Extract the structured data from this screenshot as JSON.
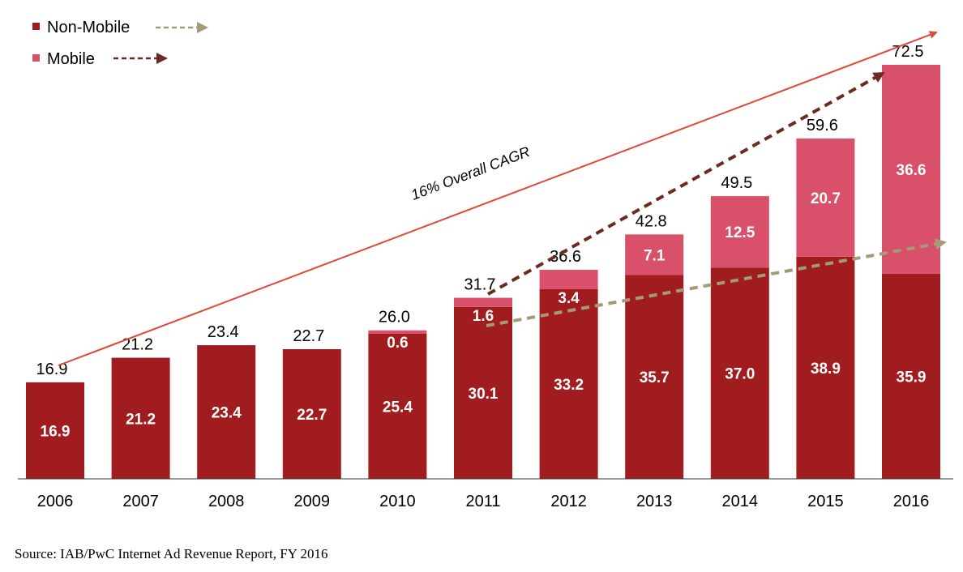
{
  "colors": {
    "non_mobile": "#a01c1f",
    "mobile": "#d9506a",
    "cagr_arrow": "#e0483a",
    "mobile_trend": "#6b2a22",
    "non_mobile_trend": "#a59a78",
    "axis": "#333333"
  },
  "chart_data": {
    "type": "bar",
    "stacked": true,
    "categories": [
      "2006",
      "2007",
      "2008",
      "2009",
      "2010",
      "2011",
      "2012",
      "2013",
      "2014",
      "2015",
      "2016"
    ],
    "series": [
      {
        "name": "Non-Mobile",
        "values": [
          16.9,
          21.2,
          23.4,
          22.7,
          25.4,
          30.1,
          33.2,
          35.7,
          37.0,
          38.9,
          35.9
        ]
      },
      {
        "name": "Mobile",
        "values": [
          0,
          0,
          0,
          0,
          0.6,
          1.6,
          3.4,
          7.1,
          12.5,
          20.7,
          36.6
        ]
      }
    ],
    "inside_labels": {
      "non_mobile": [
        "16.9",
        "21.2",
        "23.4",
        "22.7",
        "25.4",
        "30.1",
        "33.2",
        "35.7",
        "37.0",
        "38.9",
        "35.9"
      ],
      "mobile": [
        "",
        "",
        "",
        "",
        "0.6",
        "1.6",
        "3.4",
        "7.1",
        "12.5",
        "20.7",
        "36.6"
      ]
    },
    "totals": [
      "16.9",
      "21.2",
      "23.4",
      "22.7",
      "26.0",
      "31.7",
      "36.6",
      "42.8",
      "49.5",
      "59.6",
      "72.5"
    ],
    "ylim": [
      0,
      72.5
    ],
    "grid": false,
    "legend_position": "top-left",
    "annotations": {
      "cagr_label": "16% Overall CAGR"
    }
  },
  "source": "Source: IAB/PwC Internet Ad Revenue Report, FY 2016"
}
